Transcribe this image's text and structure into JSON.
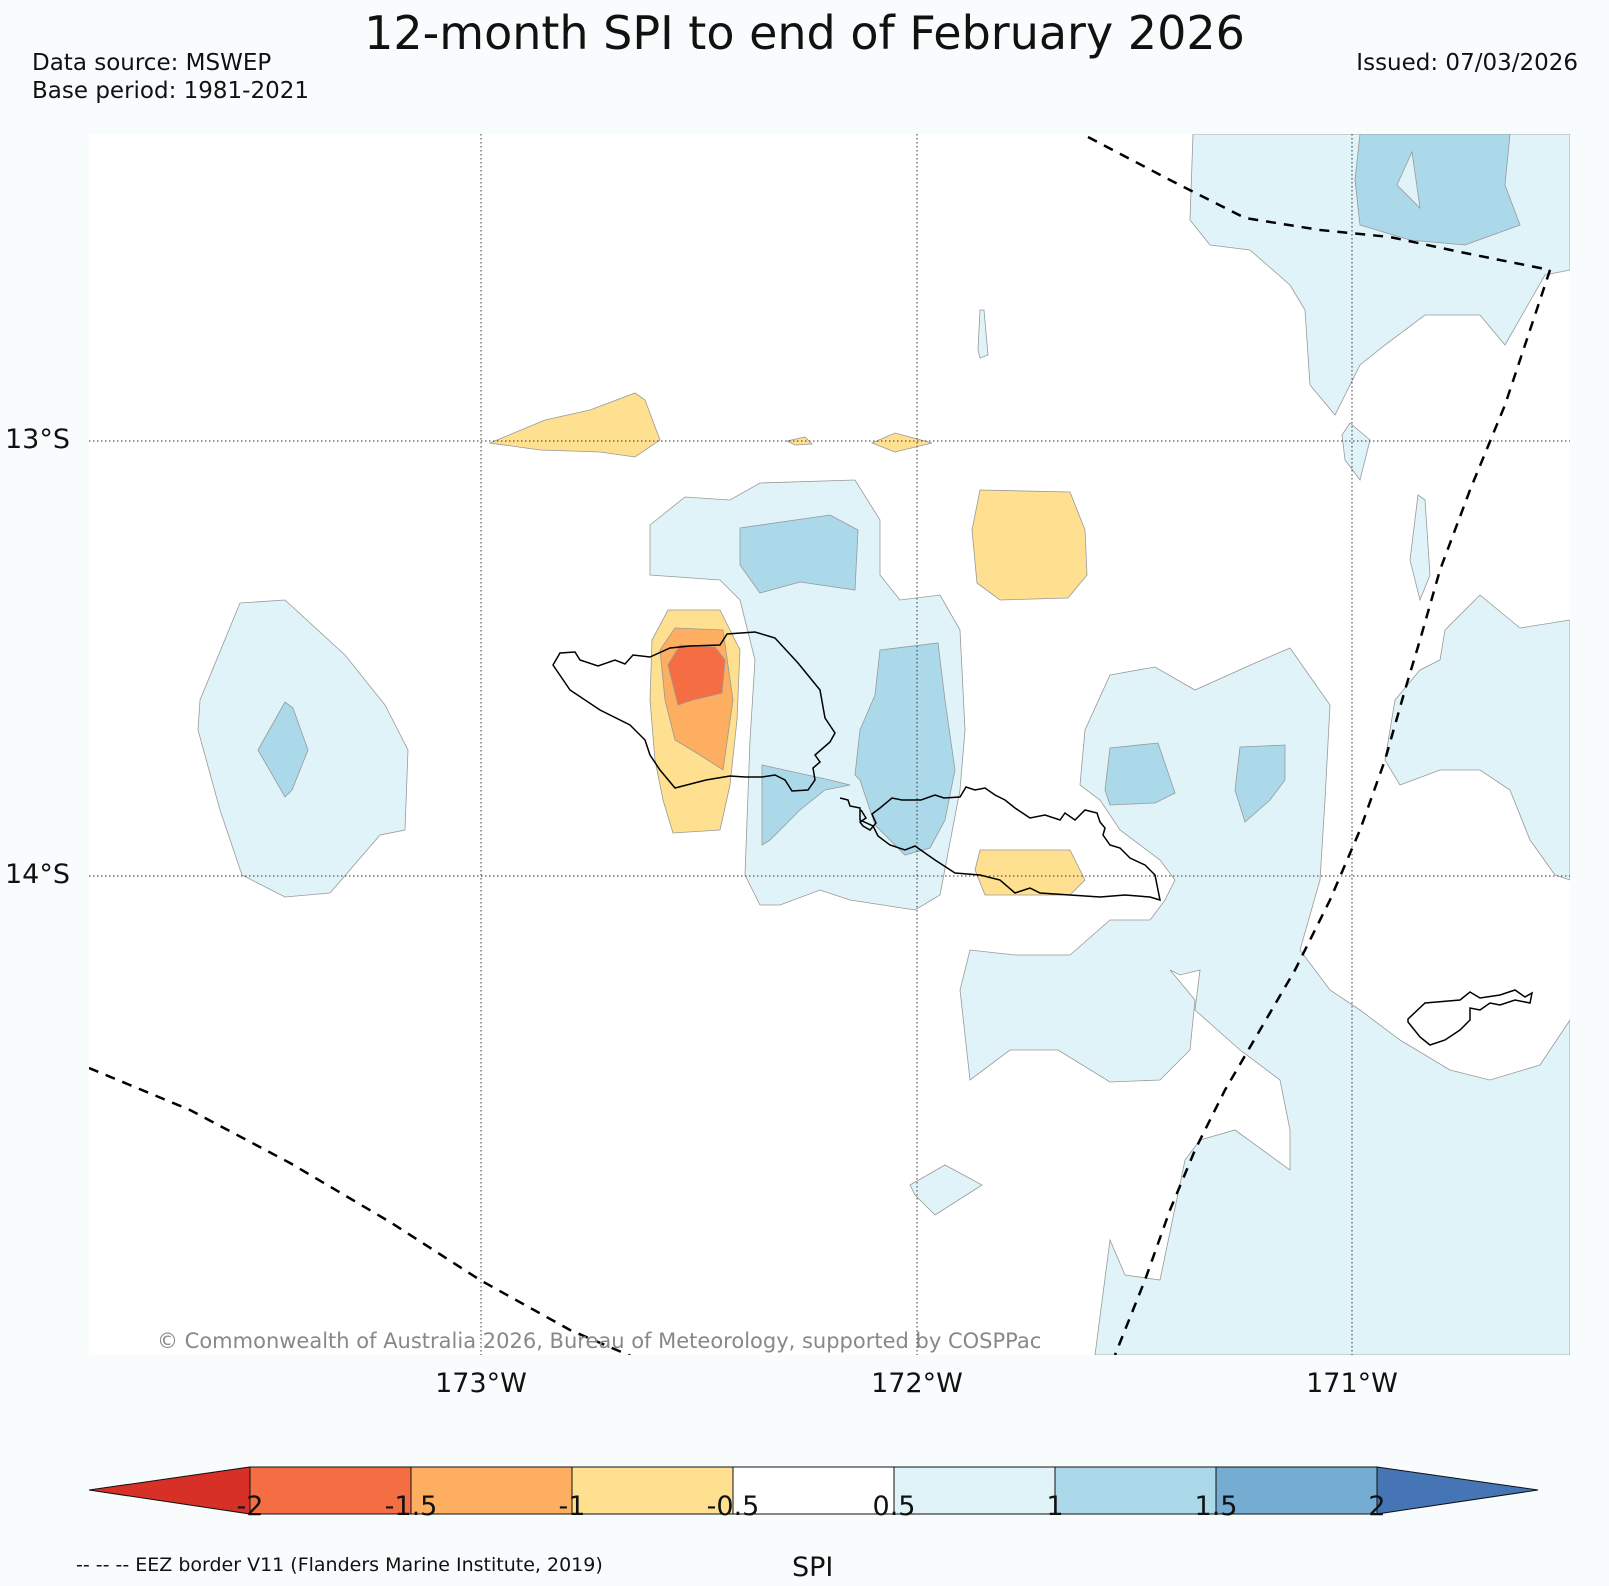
{
  "title": "12-month SPI to end of February 2026",
  "data_source": "Data source: MSWEP",
  "base_period": "Base period: 1981-2021",
  "issued": "Issued: 07/03/2026",
  "lat_labels": [
    "13°S",
    "14°S"
  ],
  "lon_labels": [
    "173°W",
    "172°W",
    "171°W"
  ],
  "copyright": "© Commonwealth of Australia 2026, Bureau of Meteorology, supported by COSPPac",
  "eez_note": "-- -- -- EEZ border V11 (Flanders Marine Institute, 2019)",
  "colorbar": {
    "label": "SPI",
    "ticks": [
      "-2",
      "-1.5",
      "-1",
      "-0.5",
      "0.5",
      "1",
      "1.5",
      "2"
    ],
    "colors": {
      "below_-2": "#d73027",
      "-2_-1.5": "#f46d43",
      "-1.5_-1": "#fdae61",
      "-1_-0.5": "#fee090",
      "-0.5_0.5": "#ffffff",
      "0.5_1": "#e0f3f8",
      "1_1.5": "#abd9e9",
      "1.5_2": "#74add1",
      "above_2": "#4575b4"
    }
  }
}
